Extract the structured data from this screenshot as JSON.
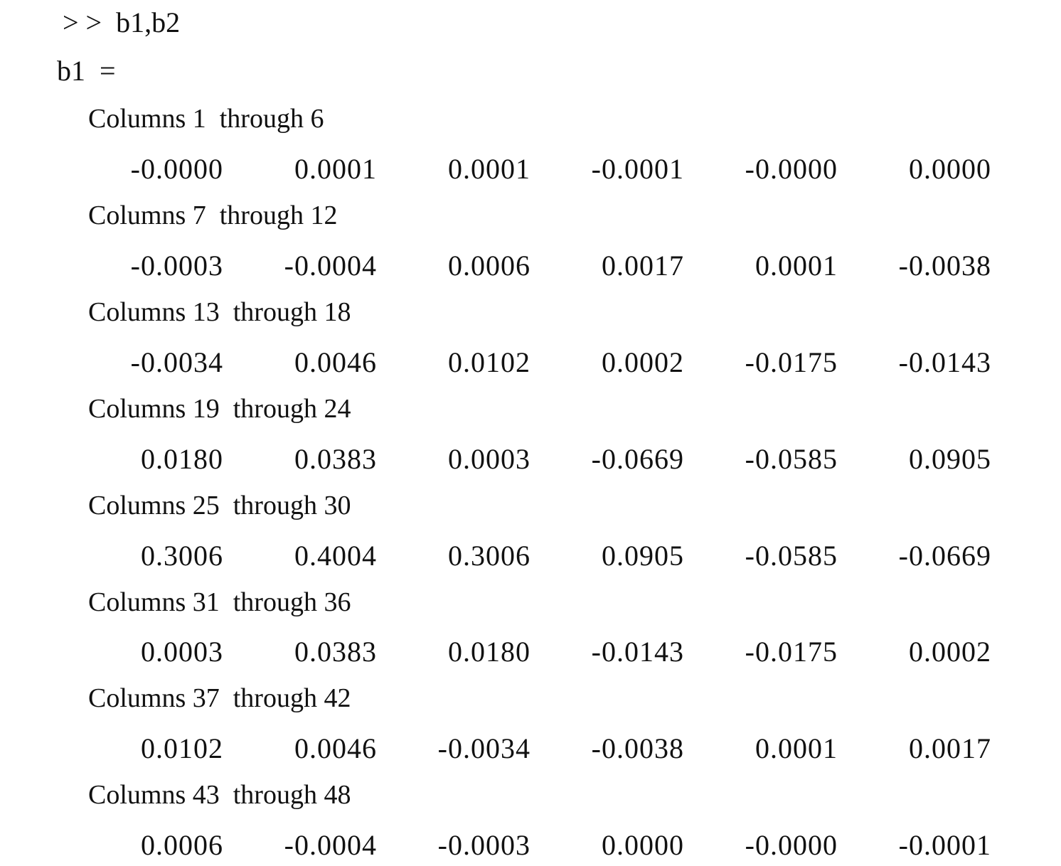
{
  "console": {
    "prompt": "> >  b1,b2",
    "variable": "b1  =",
    "blocks": [
      {
        "header": "Columns 1  through 6",
        "values": [
          "-0.0000",
          "0.0001",
          "0.0001",
          "-0.0001",
          "-0.0000",
          "0.0000"
        ]
      },
      {
        "header": "Columns 7  through 12",
        "values": [
          "-0.0003",
          "-0.0004",
          "0.0006",
          "0.0017",
          "0.0001",
          "-0.0038"
        ]
      },
      {
        "header": "Columns 13  through 18",
        "values": [
          "-0.0034",
          "0.0046",
          "0.0102",
          "0.0002",
          "-0.0175",
          "-0.0143"
        ]
      },
      {
        "header": "Columns 19  through 24",
        "values": [
          "0.0180",
          "0.0383",
          "0.0003",
          "-0.0669",
          "-0.0585",
          "0.0905"
        ]
      },
      {
        "header": "Columns 25  through 30",
        "values": [
          "0.3006",
          "0.4004",
          "0.3006",
          "0.0905",
          "-0.0585",
          "-0.0669"
        ]
      },
      {
        "header": "Columns 31  through 36",
        "values": [
          "0.0003",
          "0.0383",
          "0.0180",
          "-0.0143",
          "-0.0175",
          "0.0002"
        ]
      },
      {
        "header": "Columns 37  through 42",
        "values": [
          "0.0102",
          "0.0046",
          "-0.0034",
          "-0.0038",
          "0.0001",
          "0.0017"
        ]
      },
      {
        "header": "Columns 43  through 48",
        "values": [
          "0.0006",
          "-0.0004",
          "-0.0003",
          "0.0000",
          "-0.0000",
          "-0.0001"
        ]
      }
    ]
  }
}
